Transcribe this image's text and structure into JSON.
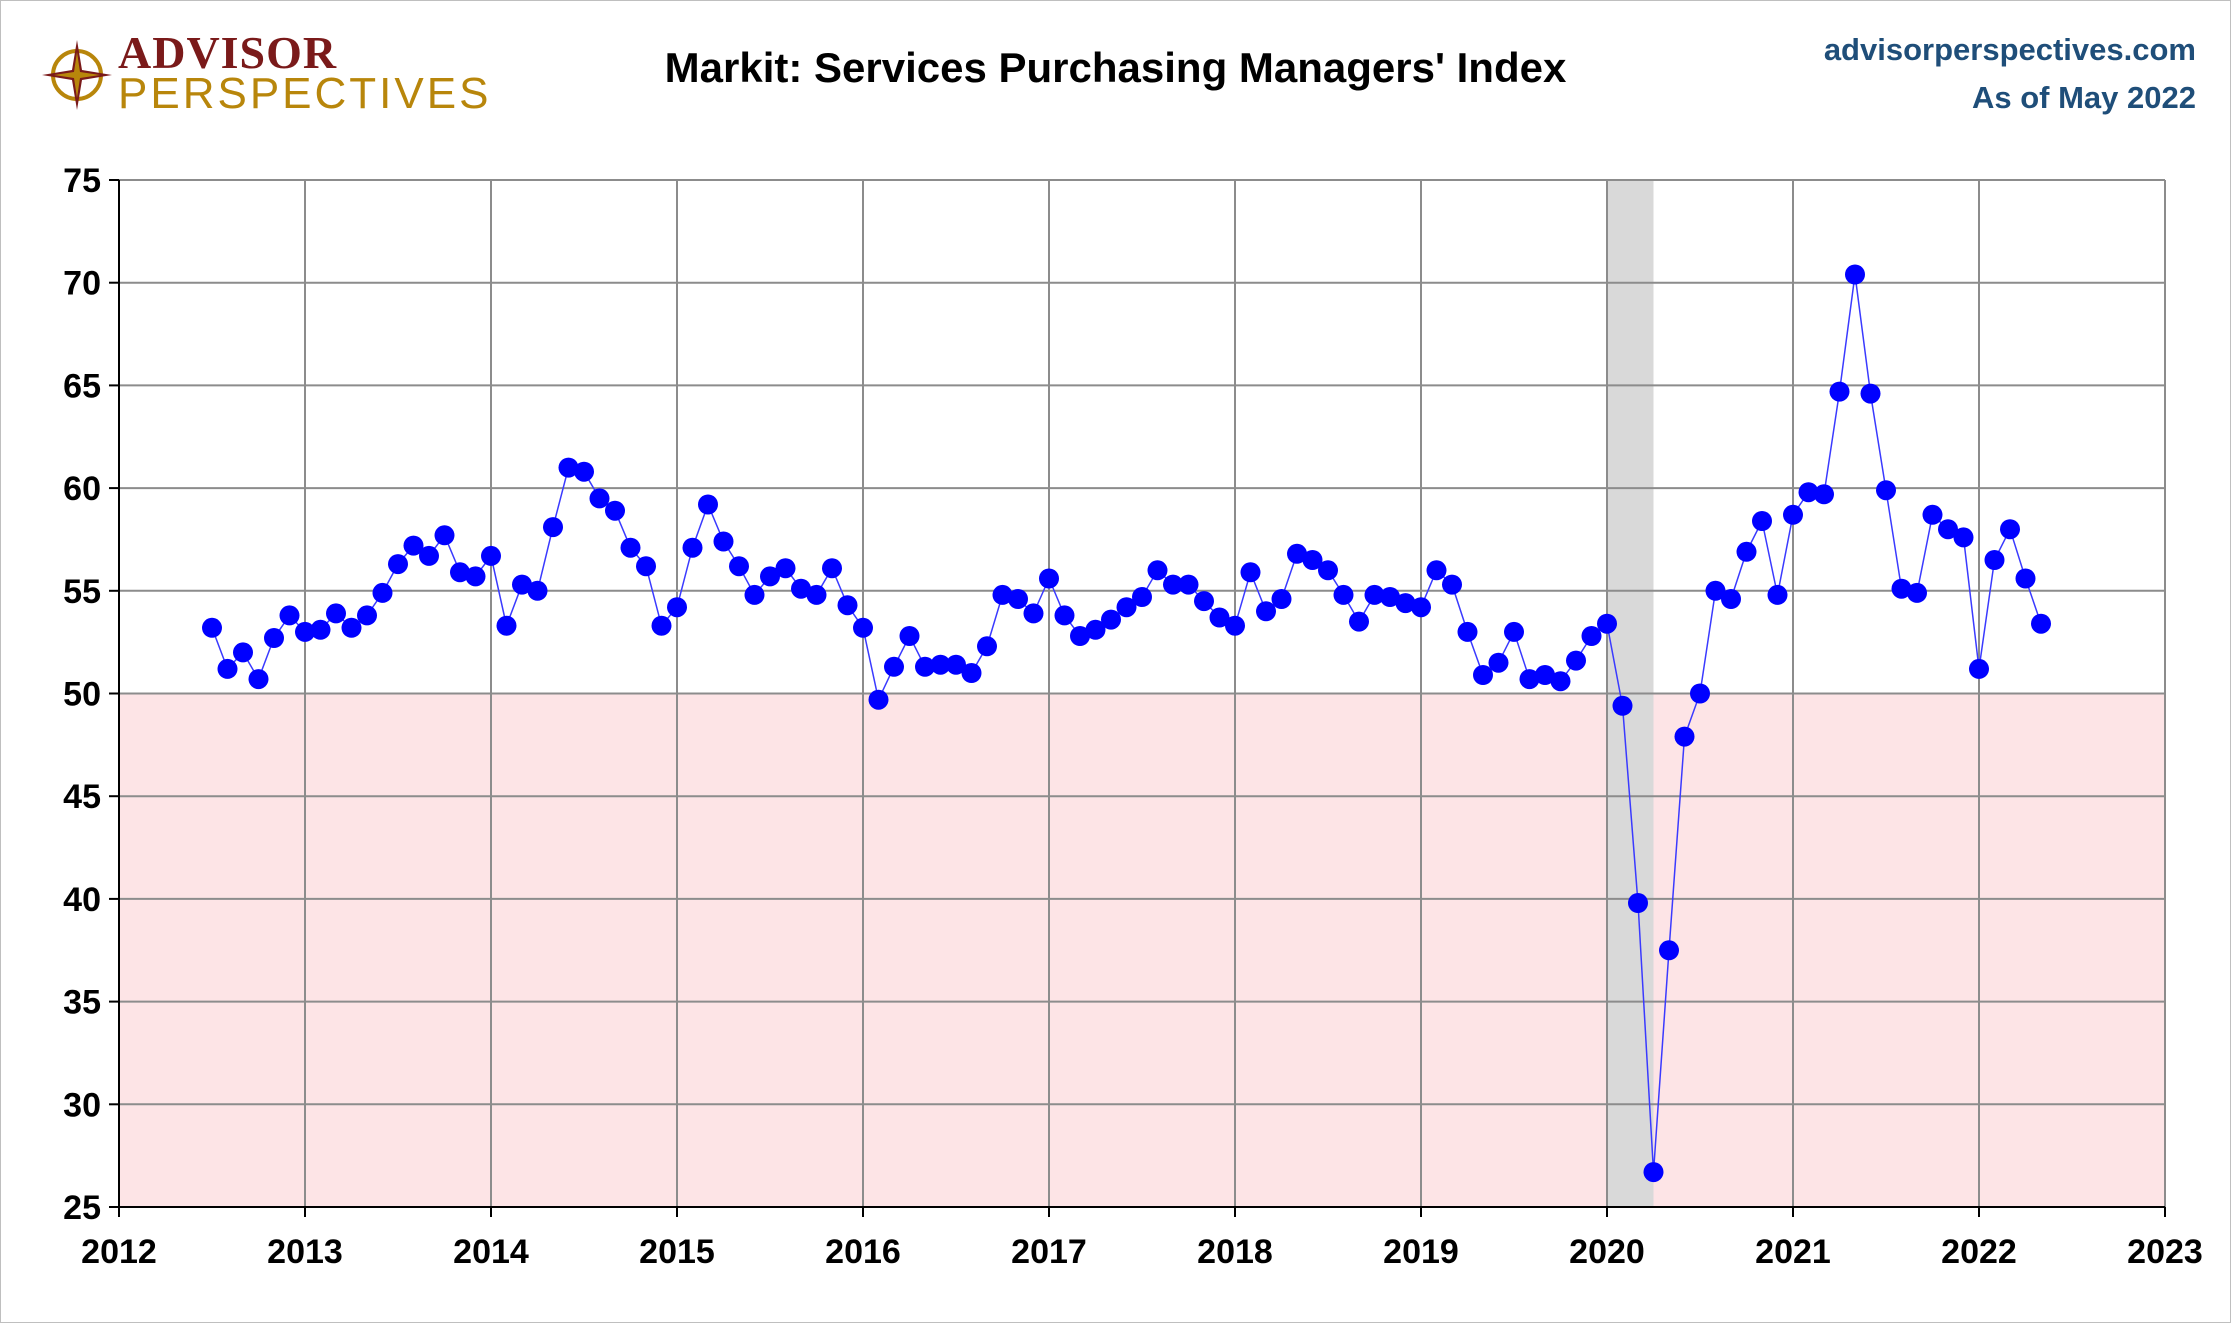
{
  "header": {
    "logo_line1": "ADVISOR",
    "logo_line2": "PERSPECTIVES",
    "site": "advisorperspectives.com",
    "as_of": "As of May 2022"
  },
  "colors": {
    "series": "#0000ff",
    "series_line": "#3a3aff",
    "contraction_fill": "#fde4e6",
    "recession_fill": "#d9d9d9",
    "grid": "#8c8c8c",
    "logo_red": "#7a1a1a",
    "logo_gold": "#b8860b",
    "site_blue": "#1f4e79"
  },
  "chart_data": {
    "type": "line",
    "title": "Markit: Services Purchasing Managers' Index",
    "xlabel": "",
    "ylabel": "",
    "xlim": [
      2012,
      2023
    ],
    "ylim": [
      25,
      75
    ],
    "x_ticks": [
      "2012",
      "2013",
      "2014",
      "2015",
      "2016",
      "2017",
      "2018",
      "2019",
      "2020",
      "2021",
      "2022",
      "2023"
    ],
    "y_ticks": [
      "75",
      "70",
      "65",
      "60",
      "55",
      "50",
      "45",
      "40",
      "35",
      "30",
      "25"
    ],
    "grid": true,
    "contraction_threshold": 50,
    "recession": {
      "start": 2020.0,
      "end": 2020.25
    },
    "series": [
      {
        "name": "Services PMI",
        "start_year": 2012,
        "start_month": 7,
        "values": [
          53.2,
          51.2,
          52.0,
          50.7,
          52.7,
          53.8,
          53.0,
          53.1,
          53.9,
          53.2,
          53.8,
          54.9,
          56.3,
          57.2,
          56.7,
          57.7,
          55.9,
          55.7,
          56.7,
          53.3,
          55.3,
          55.0,
          58.1,
          61.0,
          60.8,
          59.5,
          58.9,
          57.1,
          56.2,
          53.3,
          54.2,
          57.1,
          59.2,
          57.4,
          56.2,
          54.8,
          55.7,
          56.1,
          55.1,
          54.8,
          56.1,
          54.3,
          53.2,
          49.7,
          51.3,
          52.8,
          51.3,
          51.4,
          51.4,
          51.0,
          52.3,
          54.8,
          54.6,
          53.9,
          55.6,
          53.8,
          52.8,
          53.1,
          53.6,
          54.2,
          54.7,
          56.0,
          55.3,
          55.3,
          54.5,
          53.7,
          53.3,
          55.9,
          54.0,
          54.6,
          56.8,
          56.5,
          56.0,
          54.8,
          53.5,
          54.8,
          54.7,
          54.4,
          54.2,
          56.0,
          55.3,
          53.0,
          50.9,
          51.5,
          53.0,
          50.7,
          50.9,
          50.6,
          51.6,
          52.8,
          53.4,
          49.4,
          39.8,
          26.7,
          37.5,
          47.9,
          50.0,
          55.0,
          54.6,
          56.9,
          58.4,
          54.8,
          58.7,
          59.8,
          59.7,
          64.7,
          70.4,
          64.6,
          59.9,
          55.1,
          54.9,
          58.7,
          58.0,
          57.6,
          51.2,
          56.5,
          58.0,
          55.6,
          53.4
        ]
      }
    ]
  }
}
